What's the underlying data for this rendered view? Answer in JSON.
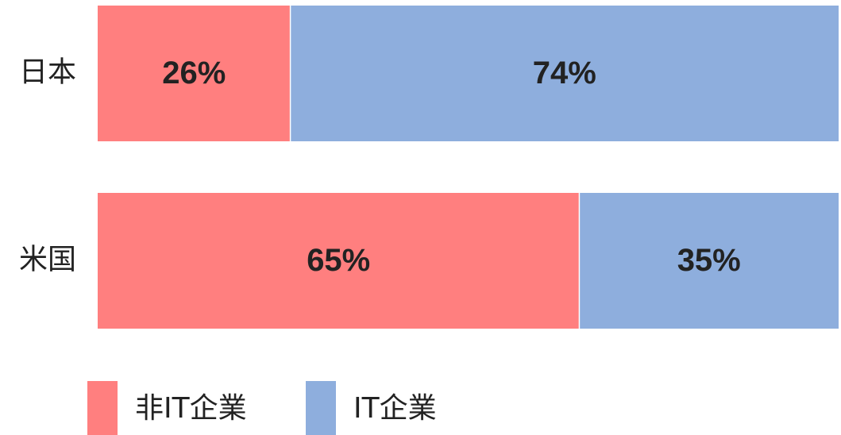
{
  "chart_data": {
    "type": "stacked-barh",
    "categories": [
      "日本",
      "米国"
    ],
    "series": [
      {
        "name": "非IT企業",
        "color": "#ff7f7f",
        "values": [
          26,
          65
        ],
        "value_labels": [
          "26%",
          "65%"
        ]
      },
      {
        "name": "IT企業",
        "color": "#8eaedd",
        "values": [
          74,
          35
        ],
        "value_labels": [
          "74%",
          "35%"
        ]
      }
    ],
    "xlim": [
      0,
      100
    ]
  }
}
